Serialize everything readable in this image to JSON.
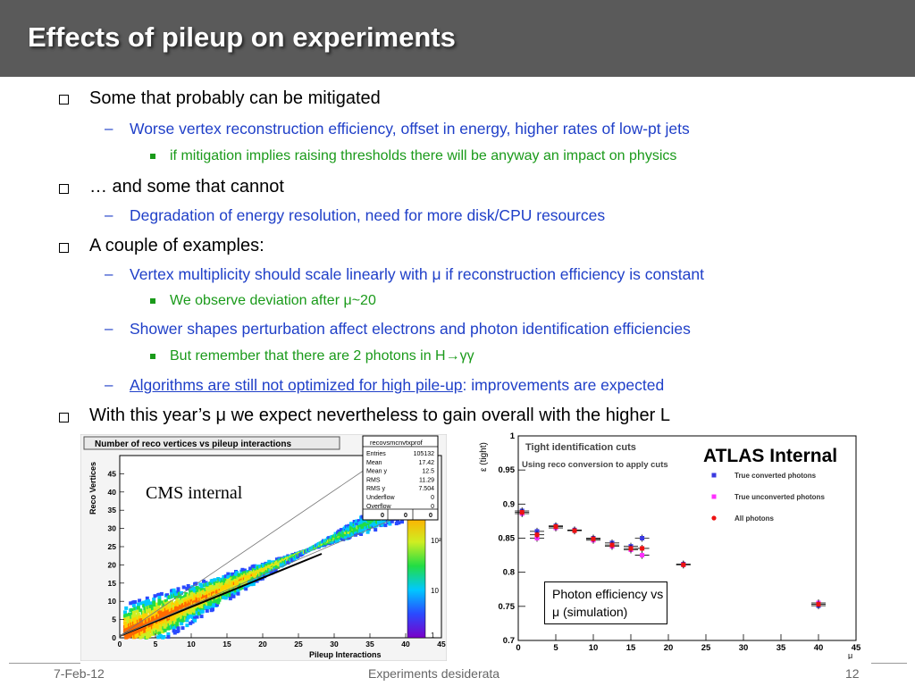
{
  "title": "Effects of pileup on experiments",
  "bullets": [
    {
      "text": "Some that probably can be mitigated"
    },
    {
      "text": "Worse vertex reconstruction efficiency, offset in energy, higher rates of low-pt jets"
    },
    {
      "text": "if mitigation implies raising thresholds there will be anyway an impact on physics"
    },
    {
      "text": "… and some that cannot"
    },
    {
      "text": "Degradation of energy resolution, need for more disk/CPU resources"
    },
    {
      "text": "A couple of examples:"
    },
    {
      "text": "Vertex multiplicity should scale linearly with μ if reconstruction efficiency is constant"
    },
    {
      "text": "We observe deviation after μ~20"
    },
    {
      "text": "Shower shapes perturbation affect electrons and photon identification efficiencies"
    },
    {
      "text": "But remember that there are 2 photons in H→γγ"
    },
    {
      "link": "Algorithms are still not optimized for high pile-up",
      "rest": ": improvements are expected"
    },
    {
      "text": "With this year’s μ we expect nevertheless to gain overall with the higher L"
    }
  ],
  "footer": {
    "date": "7-Feb-12",
    "center": "Experiments desiderata",
    "page": "12"
  },
  "cms_plot": {
    "title": "Number of reco vertices vs pileup interactions",
    "label": "CMS internal",
    "stats": {
      "name": "recovsmcnvtxprof",
      "rows": [
        [
          "Entries",
          "105132"
        ],
        [
          "Mean",
          "17.42"
        ],
        [
          "Mean y",
          "12.5"
        ],
        [
          "RMS",
          "11.29"
        ],
        [
          "RMS y",
          "7.504"
        ],
        [
          "Underflow",
          "0"
        ],
        [
          "Overflow",
          "0"
        ]
      ],
      "grid": [
        "0",
        "0",
        "0"
      ]
    },
    "xlabel": "Pileup Interactions",
    "ylabel": "Reco Vertices",
    "xticks": [
      "0",
      "5",
      "10",
      "15",
      "20",
      "25",
      "30",
      "35",
      "40",
      "45"
    ],
    "yticks": [
      "0",
      "5",
      "10",
      "15",
      "20",
      "25",
      "30",
      "35",
      "40",
      "45"
    ],
    "zticks": [
      "10²",
      "10",
      "1"
    ]
  },
  "chart_data": {
    "type": "scatter",
    "title": "Tight identification cuts",
    "subtitle": "Using reco conversion to apply cuts",
    "annotation": "ATLAS Internal",
    "note": "Photon efficiency vs μ (simulation)",
    "xlabel": "μ",
    "ylabel": "ε (tight)",
    "xlim": [
      0,
      45
    ],
    "ylim": [
      0.7,
      1
    ],
    "xticks": [
      0,
      5,
      10,
      15,
      20,
      25,
      30,
      35,
      40,
      45
    ],
    "yticks": [
      0.7,
      0.75,
      0.8,
      0.85,
      0.9,
      0.95,
      1
    ],
    "series": [
      {
        "name": "True converted photons",
        "color": "#3a3ae0",
        "x": [
          0.5,
          2.5,
          5,
          7.5,
          10,
          12.5,
          15,
          16.5,
          22,
          40
        ],
        "y": [
          0.89,
          0.86,
          0.868,
          0.862,
          0.85,
          0.843,
          0.838,
          0.85,
          0.812,
          0.751
        ]
      },
      {
        "name": "True unconverted photons",
        "color": "#ff30ff",
        "x": [
          0.5,
          2.5,
          5,
          7.5,
          10,
          12.5,
          15,
          16.5,
          22,
          40
        ],
        "y": [
          0.886,
          0.85,
          0.865,
          0.861,
          0.847,
          0.838,
          0.833,
          0.825,
          0.811,
          0.755
        ]
      },
      {
        "name": "All photons",
        "color": "#ee1111",
        "x": [
          0.5,
          2.5,
          5,
          7.5,
          10,
          12.5,
          15,
          16.5,
          22,
          40
        ],
        "y": [
          0.888,
          0.855,
          0.867,
          0.861,
          0.849,
          0.84,
          0.835,
          0.835,
          0.811,
          0.753
        ]
      }
    ]
  }
}
